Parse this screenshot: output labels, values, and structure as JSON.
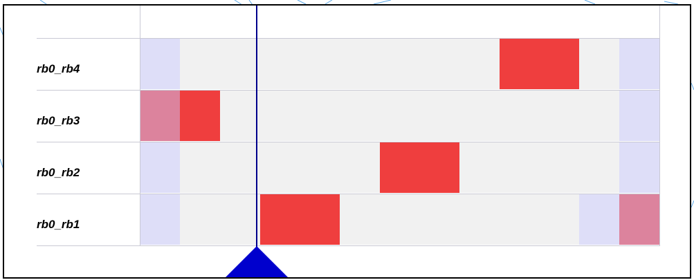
{
  "timeline": {
    "rows": [
      {
        "label": "rb0_rb4"
      },
      {
        "label": "rb0_rb3"
      },
      {
        "label": "rb0_rb2"
      },
      {
        "label": "rb0_rb1"
      }
    ],
    "colors": {
      "lane": "#f1f1f1",
      "idle": "#dedef8",
      "active": "#ef3e3e",
      "overlap": "#dc839d",
      "grid": "#c9c9d4",
      "cursor": "#00008b",
      "cursor_head": "#0000cd"
    }
  }
}
